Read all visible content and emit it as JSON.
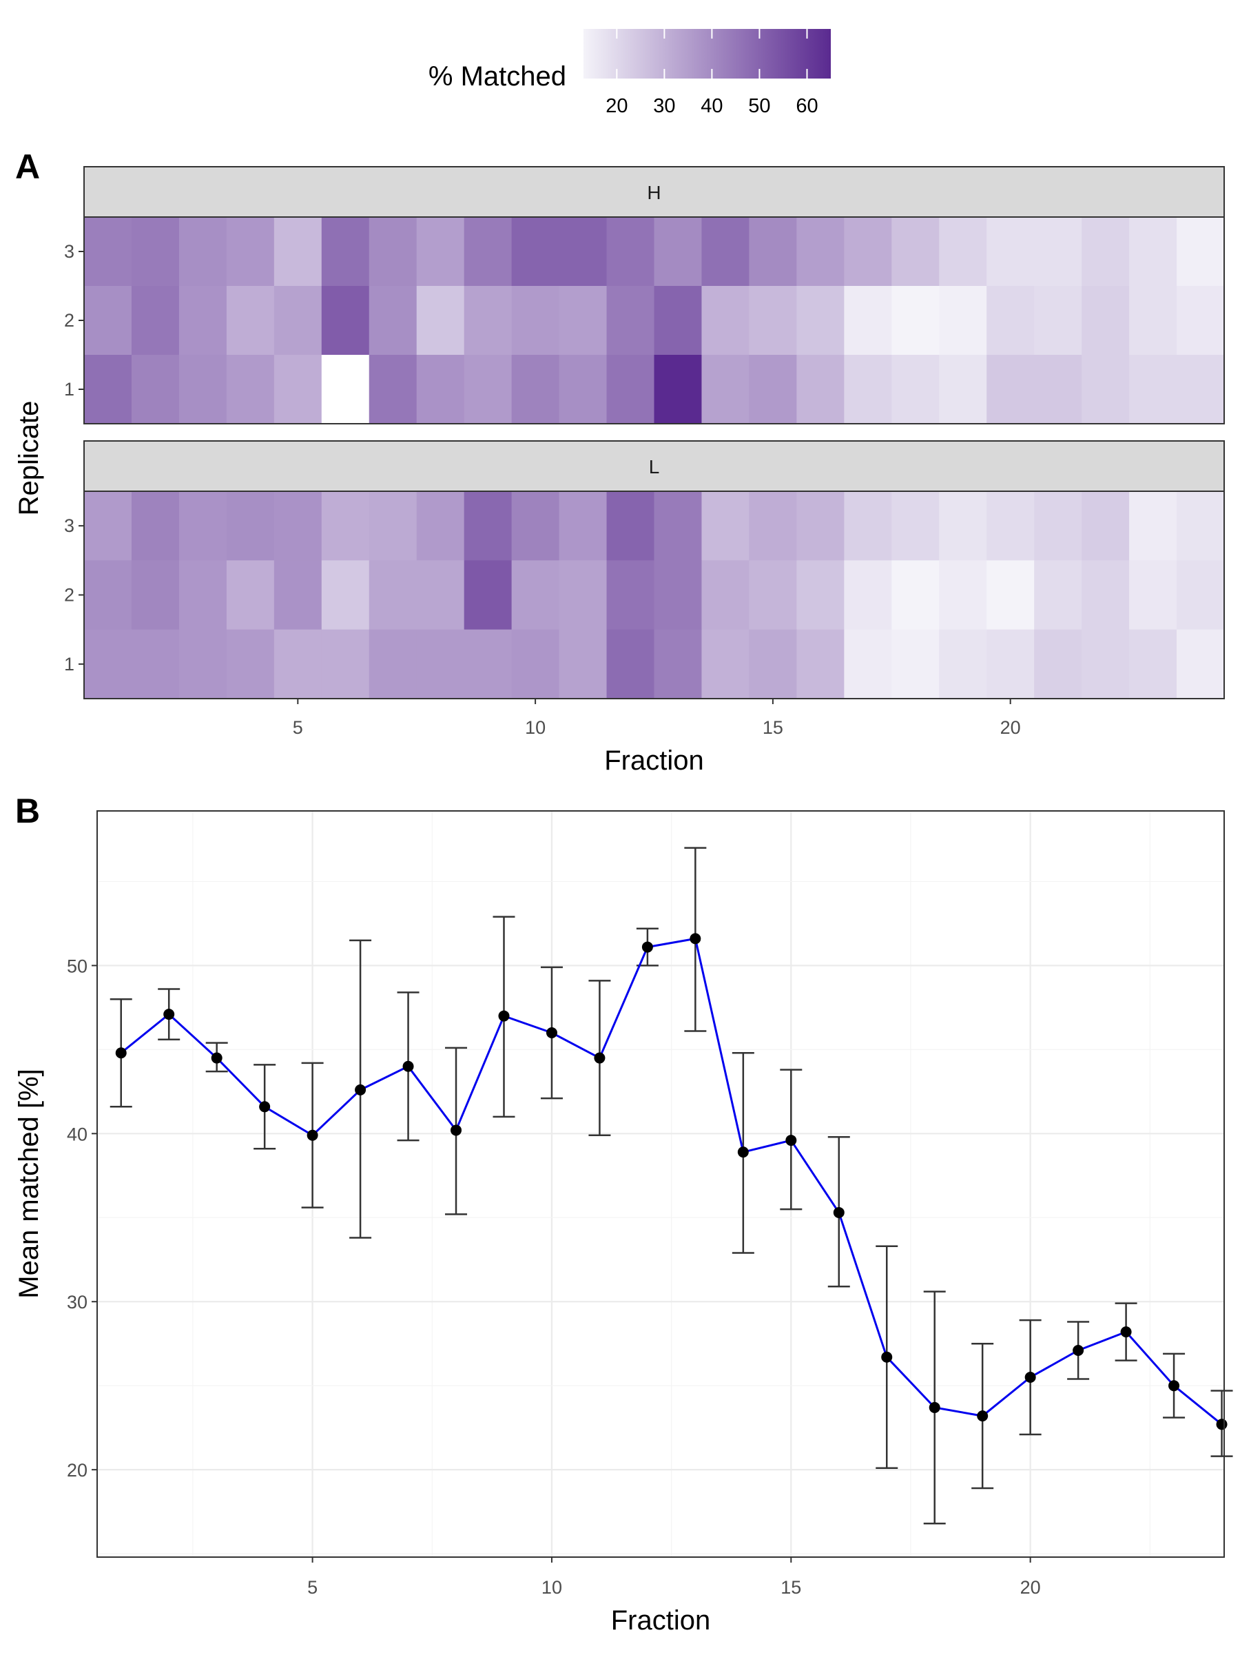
{
  "chart_data": [
    {
      "panel_label": "A",
      "type": "heatmap",
      "xlabel": "Fraction",
      "ylabel": "Replicate",
      "x_ticks": [
        5,
        10,
        15,
        20
      ],
      "y_ticks": [
        "1",
        "2",
        "3"
      ],
      "legend": {
        "title": "% Matched",
        "ticks": [
          20,
          30,
          40,
          50,
          60
        ],
        "range": [
          13,
          65
        ],
        "color_low": "#F4F3F9",
        "color_high": "#5A2A90"
      },
      "facets": [
        {
          "label": "H",
          "rows": [
            {
              "replicate": "3",
              "values": [
                43,
                44,
                39,
                37,
                28,
                47,
                40,
                35,
                44,
                50,
                50,
                46,
                40,
                47,
                40,
                35,
                31,
                26,
                21,
                18,
                18,
                21,
                18,
                14
              ]
            },
            {
              "replicate": "2",
              "values": [
                39,
                45,
                38,
                31,
                34,
                52,
                39,
                25,
                34,
                36,
                35,
                44,
                50,
                30,
                28,
                25,
                15,
                12,
                14,
                20,
                19,
                22,
                18,
                16
              ]
            },
            {
              "replicate": "1",
              "values": [
                47,
                42,
                39,
                36,
                31,
                0,
                45,
                38,
                36,
                42,
                39,
                46,
                65,
                34,
                36,
                29,
                21,
                19,
                17,
                24,
                24,
                22,
                20,
                20
              ]
            }
          ]
        },
        {
          "label": "L",
          "rows": [
            {
              "replicate": "3",
              "values": [
                36,
                42,
                38,
                39,
                38,
                31,
                32,
                36,
                49,
                42,
                37,
                50,
                44,
                28,
                31,
                29,
                22,
                20,
                17,
                19,
                21,
                23,
                15,
                17
              ]
            },
            {
              "replicate": "2",
              "values": [
                39,
                41,
                37,
                31,
                38,
                24,
                33,
                33,
                53,
                35,
                34,
                46,
                44,
                31,
                29,
                25,
                16,
                13,
                15,
                13,
                19,
                21,
                16,
                18
              ]
            },
            {
              "replicate": "1",
              "values": [
                38,
                38,
                37,
                36,
                31,
                31,
                36,
                36,
                36,
                37,
                34,
                48,
                43,
                30,
                32,
                28,
                15,
                14,
                17,
                18,
                22,
                21,
                20,
                15
              ]
            }
          ]
        }
      ]
    },
    {
      "panel_label": "B",
      "type": "line",
      "xlabel": "Fraction",
      "ylabel": "Mean matched [%]",
      "x_ticks": [
        5,
        10,
        15,
        20
      ],
      "y_ticks": [
        20,
        30,
        40,
        50
      ],
      "xlim": [
        0.5,
        24.05
      ],
      "ylim": [
        14.8,
        59.2
      ],
      "line_color": "#0000EE",
      "point_color": "#000000",
      "errorbar_color": "#333333",
      "points": [
        {
          "x": 1,
          "y": 44.8,
          "ymin": 41.6,
          "ymax": 48.0
        },
        {
          "x": 2,
          "y": 47.1,
          "ymin": 45.6,
          "ymax": 48.6
        },
        {
          "x": 3,
          "y": 44.5,
          "ymin": 43.7,
          "ymax": 45.4
        },
        {
          "x": 4,
          "y": 41.6,
          "ymin": 39.1,
          "ymax": 44.1
        },
        {
          "x": 5,
          "y": 39.9,
          "ymin": 35.6,
          "ymax": 44.2
        },
        {
          "x": 6,
          "y": 42.6,
          "ymin": 33.8,
          "ymax": 51.5
        },
        {
          "x": 7,
          "y": 44.0,
          "ymin": 39.6,
          "ymax": 48.4
        },
        {
          "x": 8,
          "y": 40.2,
          "ymin": 35.2,
          "ymax": 45.1
        },
        {
          "x": 9,
          "y": 47.0,
          "ymin": 41.0,
          "ymax": 52.9
        },
        {
          "x": 10,
          "y": 46.0,
          "ymin": 42.1,
          "ymax": 49.9
        },
        {
          "x": 11,
          "y": 44.5,
          "ymin": 39.9,
          "ymax": 49.1
        },
        {
          "x": 12,
          "y": 51.1,
          "ymin": 50.0,
          "ymax": 52.2
        },
        {
          "x": 13,
          "y": 51.6,
          "ymin": 46.1,
          "ymax": 57.0
        },
        {
          "x": 14,
          "y": 38.9,
          "ymin": 32.9,
          "ymax": 44.8
        },
        {
          "x": 15,
          "y": 39.6,
          "ymin": 35.5,
          "ymax": 43.8
        },
        {
          "x": 16,
          "y": 35.3,
          "ymin": 30.9,
          "ymax": 39.8
        },
        {
          "x": 17,
          "y": 26.7,
          "ymin": 20.1,
          "ymax": 33.3
        },
        {
          "x": 18,
          "y": 23.7,
          "ymin": 16.8,
          "ymax": 30.6
        },
        {
          "x": 19,
          "y": 23.2,
          "ymin": 18.9,
          "ymax": 27.5
        },
        {
          "x": 20,
          "y": 25.5,
          "ymin": 22.1,
          "ymax": 28.9
        },
        {
          "x": 21,
          "y": 27.1,
          "ymin": 25.4,
          "ymax": 28.8
        },
        {
          "x": 22,
          "y": 28.2,
          "ymin": 26.5,
          "ymax": 29.9
        },
        {
          "x": 23,
          "y": 25.0,
          "ymin": 23.1,
          "ymax": 26.9
        },
        {
          "x": 24,
          "y": 22.7,
          "ymin": 20.8,
          "ymax": 24.7
        }
      ]
    }
  ]
}
